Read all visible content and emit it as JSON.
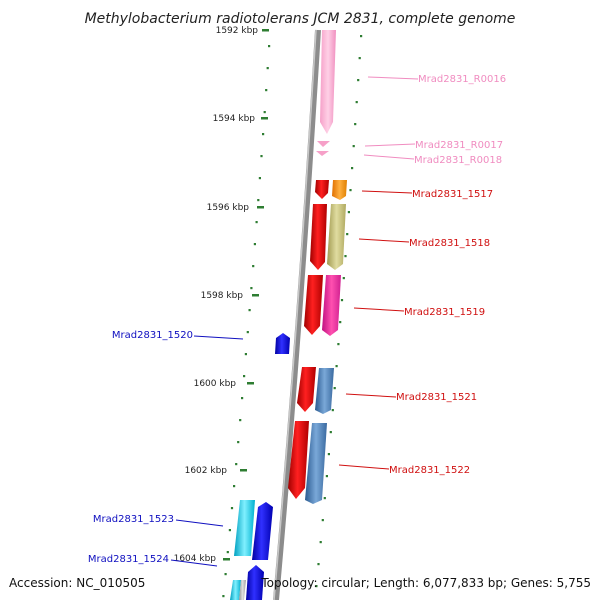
{
  "title": "Methylobacterium radiotolerans JCM 2831, complete genome",
  "footer": {
    "accession": "Accession: NC_010505",
    "topology": "Topology: circular; Length: 6,077,833 bp; Genes: 5,755"
  },
  "colors": {
    "backbone": "#8a8a8a",
    "tick": "#2e7d32",
    "rna_pink": "#f7a8d0",
    "forward_red": "#e01010",
    "reverse_blue": "#1010e0"
  },
  "ticks": [
    "1592 kbp",
    "1594 kbp",
    "1596 kbp",
    "1598 kbp",
    "1600 kbp",
    "1602 kbp",
    "1604 kbp"
  ],
  "genes": [
    {
      "label": "Mrad2831_R0016",
      "color": "#f08cc0"
    },
    {
      "label": "Mrad2831_R0017",
      "color": "#f08cc0"
    },
    {
      "label": "Mrad2831_R0018",
      "color": "#f08cc0"
    },
    {
      "label": "Mrad2831_1517",
      "color": "#d01010"
    },
    {
      "label": "Mrad2831_1518",
      "color": "#d01010"
    },
    {
      "label": "Mrad2831_1519",
      "color": "#d01010"
    },
    {
      "label": "Mrad2831_1520",
      "color": "#1010c0"
    },
    {
      "label": "Mrad2831_1521",
      "color": "#d01010"
    },
    {
      "label": "Mrad2831_1522",
      "color": "#d01010"
    },
    {
      "label": "Mrad2831_1523",
      "color": "#1010c0"
    },
    {
      "label": "Mrad2831_1524",
      "color": "#1010c0"
    }
  ]
}
